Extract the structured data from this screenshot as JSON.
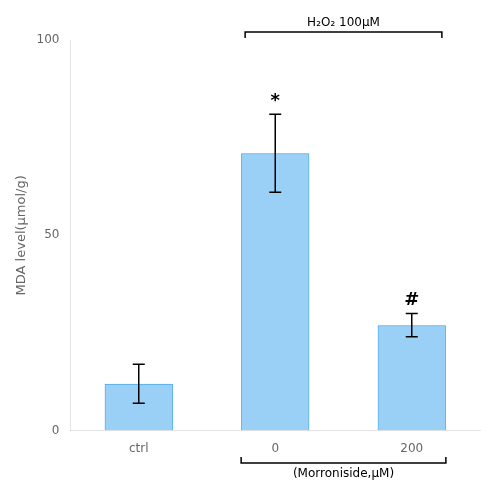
{
  "chart_data": {
    "type": "bar",
    "categories": [
      "ctrl",
      "0",
      "200"
    ],
    "values": [
      12,
      71,
      27
    ],
    "errors": [
      5,
      10,
      3
    ],
    "ylabel": "MDA level(μmol/g)",
    "xlabel": "(Morroniside,μM)",
    "annotations": [
      {
        "text": "*",
        "category": "0"
      },
      {
        "text": "#",
        "category": "200"
      },
      {
        "text": "H₂O₂ 100μM",
        "categories": [
          "0",
          "200"
        ]
      }
    ],
    "ylim": [
      0,
      100
    ],
    "yticks": [
      0,
      50,
      100
    ],
    "grid": false
  }
}
